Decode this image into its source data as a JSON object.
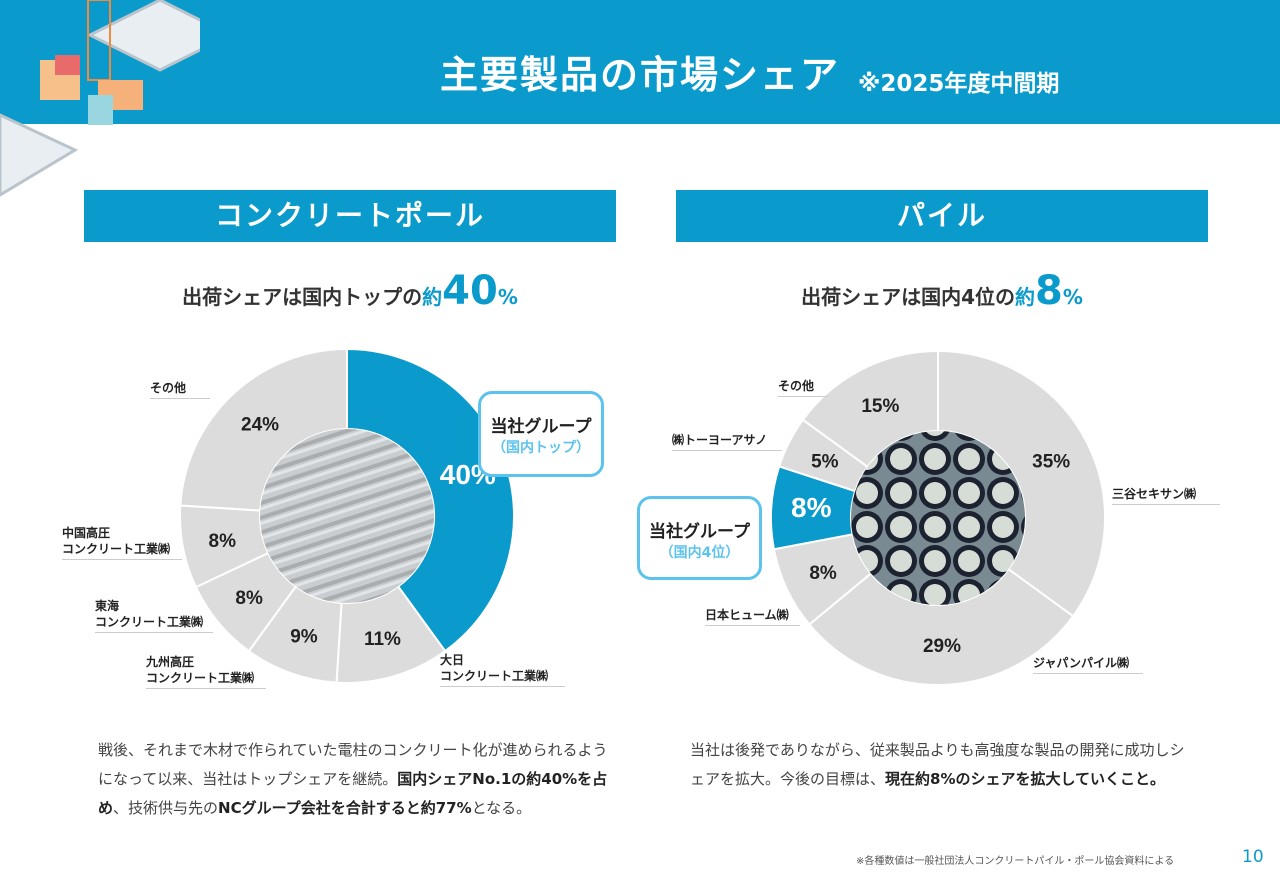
{
  "header": {
    "title": "主要製品の市場シェア",
    "subtitle": "※2025年度中間期"
  },
  "colors": {
    "brand": "#0a9acb",
    "other": "#dcdcdc",
    "callout": "#5cc3ee"
  },
  "left": {
    "section": "コンクリートポール",
    "lead_pre": "出荷シェアは国内トップの",
    "lead_ya": "約",
    "lead_num": "40",
    "lead_pct": "%",
    "callout": {
      "title": "当社グループ",
      "sub": "（国内トップ）"
    },
    "body": {
      "t1": "戦後、それまで木材で作られていた電柱のコンクリート化が進められるようになって以来、当社はトップシェアを継続。",
      "b1": "国内シェアNo.1の約40%を占め",
      "t2": "、技術供与先の",
      "b2": "NCグループ会社を合計すると約77%",
      "t3": "となる。"
    }
  },
  "right": {
    "section": "パイル",
    "lead_pre": "出荷シェアは国内4位の",
    "lead_ya": "約",
    "lead_num": "8",
    "lead_pct": "%",
    "callout": {
      "title": "当社グループ",
      "sub": "（国内4位）"
    },
    "body": {
      "t1": "当社は後発でありながら、従来製品よりも高強度な製品の開発に成功しシェアを拡大。今後の目標は、",
      "b1": "現在約8%のシェアを拡大していくこと。"
    }
  },
  "chart_data": [
    {
      "type": "pie",
      "donut": true,
      "start": "top",
      "direction": "clockwise",
      "categories": [
        "当社グループ",
        "大日\nコンクリート工業㈱",
        "九州高圧\nコンクリート工業㈱",
        "東海\nコンクリート工業㈱",
        "中国高圧\nコンクリート工業㈱",
        "その他"
      ],
      "values": [
        40,
        11,
        9,
        8,
        8,
        24
      ],
      "labels": [
        "40%",
        "11%",
        "9%",
        "8%",
        "8%",
        "24%"
      ],
      "highlight": 0
    },
    {
      "type": "pie",
      "donut": true,
      "start": "top",
      "direction": "clockwise",
      "categories": [
        "三谷セキサン㈱",
        "ジャパンパイル㈱",
        "日本ヒューム㈱",
        "当社グループ",
        "㈱トーヨーアサノ",
        "その他"
      ],
      "values": [
        35,
        29,
        8,
        8,
        5,
        15
      ],
      "labels": [
        "35%",
        "29%",
        "8%",
        "8%",
        "5%",
        "15%"
      ],
      "highlight": 3
    }
  ],
  "footer": {
    "note": "※各種数値は一般社団法人コンクリートパイル・ポール協会資料による",
    "page": "10"
  }
}
